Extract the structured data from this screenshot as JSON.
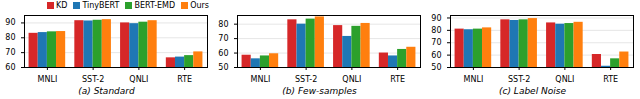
{
  "chart_data": [
    {
      "type": "bar",
      "title": "(a) Standard",
      "categories": [
        "MNLI",
        "SST-2",
        "QNLI",
        "RTE"
      ],
      "series": [
        {
          "name": "KD",
          "color": "#d62728",
          "values": [
            83.0,
            91.5,
            90.0,
            66.5
          ]
        },
        {
          "name": "TinyBERT",
          "color": "#1f77b4",
          "values": [
            83.5,
            91.3,
            89.5,
            67.0
          ]
        },
        {
          "name": "BERT-EMD",
          "color": "#2ca02c",
          "values": [
            84.0,
            91.8,
            90.5,
            68.0
          ]
        },
        {
          "name": "Ours",
          "color": "#ff7f0e",
          "values": [
            84.2,
            92.2,
            91.5,
            70.5
          ]
        }
      ],
      "ylim": [
        60,
        95
      ],
      "yticks": [
        60,
        70,
        80,
        90
      ],
      "grid": true,
      "legend": "upper right"
    },
    {
      "type": "bar",
      "title": "(b) Few-samples",
      "categories": [
        "MNLI",
        "SST-2",
        "QNLI",
        "RTE"
      ],
      "series": [
        {
          "name": "KD",
          "color": "#d62728",
          "values": [
            58.5,
            83.0,
            79.0,
            60.0
          ]
        },
        {
          "name": "TinyBERT",
          "color": "#1f77b4",
          "values": [
            56.0,
            80.0,
            71.5,
            58.0
          ]
        },
        {
          "name": "BERT-EMD",
          "color": "#2ca02c",
          "values": [
            58.0,
            83.5,
            78.5,
            62.5
          ]
        },
        {
          "name": "Ours",
          "color": "#ff7f0e",
          "values": [
            59.5,
            85.0,
            80.5,
            64.0
          ]
        }
      ],
      "ylim": [
        50,
        86
      ],
      "yticks": [
        50,
        60,
        70,
        80
      ],
      "grid": true
    },
    {
      "type": "bar",
      "title": "(c) Label Noise",
      "categories": [
        "MNLI",
        "SST-2",
        "QNLI",
        "RTE"
      ],
      "series": [
        {
          "name": "KD",
          "color": "#d62728",
          "values": [
            81.0,
            88.5,
            86.0,
            60.5
          ]
        },
        {
          "name": "TinyBERT",
          "color": "#1f77b4",
          "values": [
            80.5,
            88.0,
            85.0,
            51.0
          ]
        },
        {
          "name": "BERT-EMD",
          "color": "#2ca02c",
          "values": [
            81.0,
            88.5,
            85.5,
            57.0
          ]
        },
        {
          "name": "Ours",
          "color": "#ff7f0e",
          "values": [
            82.0,
            89.5,
            86.5,
            62.5
          ]
        }
      ],
      "ylim": [
        50,
        92
      ],
      "yticks": [
        50,
        60,
        70,
        80,
        90
      ],
      "grid": true
    }
  ]
}
